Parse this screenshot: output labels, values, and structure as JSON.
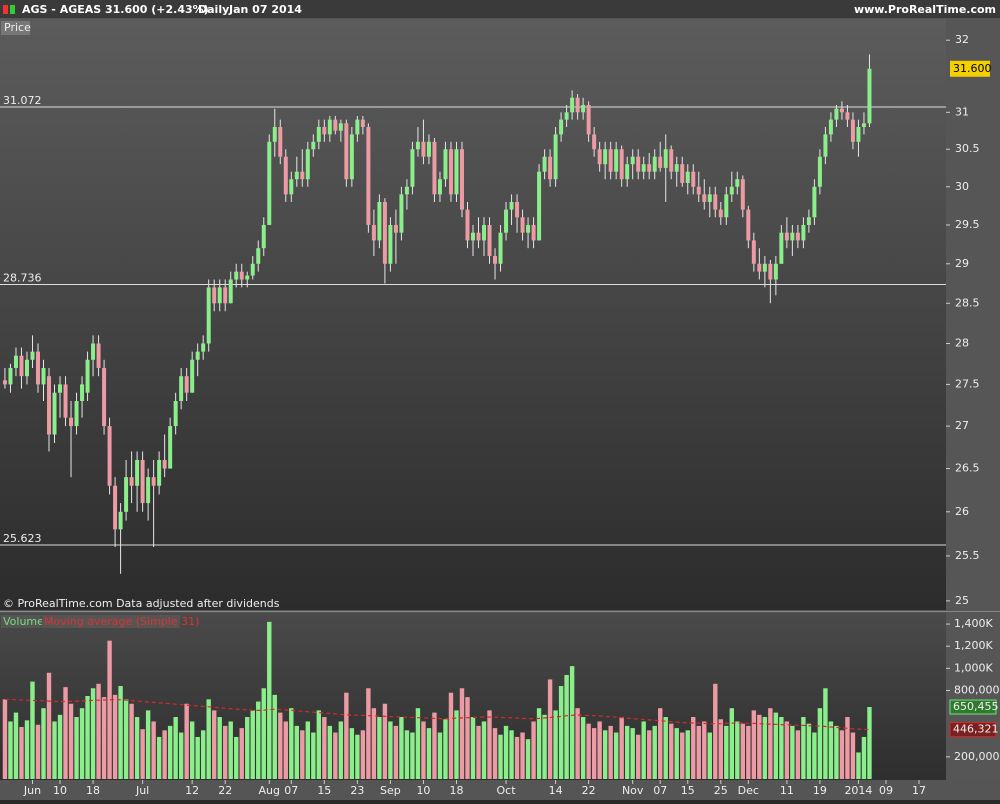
{
  "header": {
    "symbol": "AGS - AGEAS",
    "quote": "31.600 (+2.43%)",
    "period": "Daily",
    "date": "Jan 07 2014",
    "site": "www.ProRealTime.com"
  },
  "chart_data": [
    {
      "type": "candlestick",
      "panel_label": "Price",
      "note": "© ProRealTime.com Data adjusted after dividends",
      "log_scale": true,
      "up_color": "#8aee8a",
      "down_color": "#ec9aa4",
      "xlim": [
        -0.9,
        170.9
      ],
      "ylim": [
        24.9,
        32.3
      ],
      "yticks": [
        25,
        25.5,
        26,
        26.5,
        27,
        27.5,
        28,
        28.5,
        29,
        29.5,
        30,
        30.5,
        31,
        32
      ],
      "levels": [
        31.072,
        28.736,
        25.623
      ],
      "last_price": {
        "value": 31.6,
        "label": "31.600"
      },
      "open": [
        27.55,
        27.5,
        27.7,
        27.85,
        27.6,
        27.8,
        27.9,
        27.5,
        27.6,
        26.9,
        27.4,
        27.5,
        27.1,
        27.0,
        27.3,
        27.4,
        27.8,
        28.0,
        27.7,
        27.0,
        26.3,
        25.8,
        26.0,
        26.4,
        26.3,
        26.6,
        26.1,
        26.4,
        26.3,
        26.6,
        26.5,
        27.0,
        27.3,
        27.6,
        27.4,
        27.8,
        27.9,
        28.0,
        28.7,
        28.5,
        28.7,
        28.5,
        28.8,
        28.9,
        28.8,
        28.85,
        29.0,
        29.2,
        29.5,
        30.6,
        30.8,
        30.4,
        29.9,
        30.1,
        30.2,
        30.1,
        30.5,
        30.6,
        30.8,
        30.7,
        30.9,
        30.75,
        30.85,
        30.1,
        30.7,
        30.9,
        30.8,
        29.5,
        29.3,
        29.8,
        29.0,
        29.5,
        29.4,
        29.9,
        30.0,
        30.5,
        30.6,
        30.4,
        30.6,
        29.9,
        30.1,
        30.5,
        29.9,
        30.5,
        29.7,
        29.3,
        29.4,
        29.3,
        29.5,
        29.1,
        29.0,
        29.4,
        29.7,
        29.8,
        29.6,
        29.4,
        29.5,
        29.3,
        30.2,
        30.4,
        30.1,
        30.7,
        30.9,
        31.0,
        31.2,
        31.0,
        31.1,
        30.7,
        30.5,
        30.3,
        30.5,
        30.2,
        30.5,
        30.1,
        30.3,
        30.4,
        30.2,
        30.3,
        30.2,
        30.4,
        30.25,
        30.5,
        30.2,
        30.3,
        30.05,
        30.2,
        30.0,
        29.9,
        29.8,
        29.9,
        29.7,
        29.6,
        29.9,
        30.0,
        30.1,
        29.7,
        29.3,
        29.0,
        28.9,
        29.0,
        28.8,
        29.0,
        29.4,
        29.3,
        29.4,
        29.3,
        29.5,
        29.6,
        30.0,
        30.4,
        30.7,
        30.9,
        31.05,
        31.0,
        30.9,
        30.6,
        30.8,
        30.85
      ],
      "high": [
        27.7,
        27.75,
        27.95,
        27.95,
        27.9,
        28.1,
        28.0,
        27.8,
        27.7,
        27.5,
        27.6,
        27.6,
        27.3,
        27.4,
        27.6,
        27.9,
        28.1,
        28.1,
        27.8,
        27.1,
        26.4,
        26.1,
        26.6,
        26.7,
        26.7,
        26.7,
        26.5,
        26.6,
        26.7,
        26.9,
        27.1,
        27.4,
        27.7,
        27.7,
        27.9,
        28.0,
        28.1,
        28.8,
        28.8,
        28.8,
        28.8,
        28.9,
        29.0,
        29.0,
        28.9,
        29.1,
        29.3,
        29.6,
        30.7,
        31.05,
        30.9,
        30.5,
        30.2,
        30.4,
        30.5,
        30.6,
        30.7,
        30.9,
        30.9,
        30.95,
        30.95,
        30.9,
        30.9,
        30.8,
        30.95,
        30.95,
        30.85,
        29.7,
        29.9,
        29.85,
        29.6,
        29.7,
        30.0,
        30.1,
        30.6,
        30.8,
        30.9,
        30.7,
        30.65,
        30.2,
        30.6,
        30.6,
        30.6,
        30.6,
        29.8,
        29.5,
        29.6,
        29.6,
        29.6,
        29.2,
        29.5,
        29.8,
        29.9,
        29.9,
        29.7,
        29.6,
        29.6,
        30.3,
        30.5,
        30.5,
        30.8,
        31.0,
        31.1,
        31.3,
        31.25,
        31.2,
        31.15,
        30.8,
        30.6,
        30.6,
        30.6,
        30.6,
        30.55,
        30.4,
        30.5,
        30.5,
        30.4,
        30.45,
        30.5,
        30.6,
        30.7,
        30.55,
        30.4,
        30.4,
        30.3,
        30.3,
        30.2,
        30.1,
        30.0,
        30.0,
        29.8,
        30.0,
        30.2,
        30.2,
        30.15,
        29.75,
        29.4,
        29.2,
        29.1,
        29.05,
        29.1,
        29.5,
        29.6,
        29.5,
        29.5,
        29.6,
        29.7,
        30.1,
        30.5,
        30.8,
        31.0,
        31.1,
        31.15,
        31.1,
        31.0,
        30.9,
        31.0,
        31.8
      ],
      "low": [
        27.45,
        27.4,
        27.6,
        27.45,
        27.5,
        27.7,
        27.4,
        27.3,
        26.7,
        26.8,
        27.1,
        27.0,
        26.4,
        26.9,
        27.1,
        27.3,
        27.6,
        27.6,
        26.9,
        26.2,
        25.6,
        25.3,
        25.9,
        26.1,
        26.0,
        26.0,
        25.9,
        25.6,
        26.2,
        26.4,
        26.5,
        26.9,
        27.2,
        27.3,
        27.4,
        27.6,
        27.8,
        27.9,
        28.4,
        28.4,
        28.4,
        28.5,
        28.7,
        28.7,
        28.7,
        28.8,
        28.9,
        29.1,
        29.5,
        30.4,
        30.3,
        29.8,
        29.8,
        30.0,
        30.0,
        30.0,
        30.4,
        30.5,
        30.6,
        30.6,
        30.7,
        30.6,
        30.0,
        30.0,
        30.6,
        30.7,
        29.4,
        29.1,
        29.2,
        28.75,
        28.9,
        29.0,
        29.3,
        29.7,
        29.9,
        30.4,
        30.3,
        30.3,
        29.8,
        29.8,
        30.0,
        29.8,
        29.8,
        29.6,
        29.2,
        29.1,
        29.2,
        29.1,
        29.0,
        28.8,
        28.9,
        29.3,
        29.5,
        29.4,
        29.3,
        29.2,
        29.2,
        29.3,
        30.1,
        30.0,
        30.0,
        30.6,
        30.8,
        30.9,
        30.9,
        30.9,
        30.6,
        30.4,
        30.2,
        30.1,
        30.1,
        30.1,
        30.0,
        30.0,
        30.1,
        30.1,
        30.1,
        30.1,
        30.1,
        30.2,
        29.8,
        30.1,
        30.0,
        30.0,
        29.9,
        29.9,
        29.8,
        29.7,
        29.6,
        29.6,
        29.5,
        29.5,
        29.8,
        29.9,
        29.6,
        29.2,
        28.9,
        28.8,
        28.7,
        28.5,
        28.6,
        29.0,
        29.2,
        29.1,
        29.2,
        29.2,
        29.4,
        29.5,
        29.9,
        30.3,
        30.6,
        30.8,
        30.9,
        30.8,
        30.5,
        30.4,
        30.7,
        30.8
      ],
      "close": [
        27.5,
        27.7,
        27.85,
        27.6,
        27.8,
        27.9,
        27.5,
        27.7,
        26.9,
        27.4,
        27.5,
        27.1,
        27.0,
        27.3,
        27.5,
        27.8,
        28.0,
        27.7,
        27.0,
        26.3,
        25.8,
        26.0,
        26.4,
        26.3,
        26.6,
        26.1,
        26.4,
        26.3,
        26.6,
        26.5,
        27.0,
        27.3,
        27.6,
        27.4,
        27.8,
        27.9,
        28.0,
        28.7,
        28.5,
        28.7,
        28.5,
        28.8,
        28.9,
        28.8,
        28.85,
        29.0,
        29.2,
        29.5,
        30.6,
        30.8,
        30.4,
        29.9,
        30.1,
        30.2,
        30.1,
        30.5,
        30.6,
        30.8,
        30.7,
        30.9,
        30.75,
        30.85,
        30.1,
        30.7,
        30.9,
        30.8,
        29.5,
        29.3,
        29.8,
        29.0,
        29.5,
        29.4,
        29.9,
        30.0,
        30.5,
        30.6,
        30.4,
        30.6,
        29.9,
        30.1,
        30.5,
        29.9,
        30.5,
        29.7,
        29.3,
        29.4,
        29.3,
        29.5,
        29.1,
        29.0,
        29.4,
        29.7,
        29.8,
        29.6,
        29.4,
        29.5,
        29.3,
        30.2,
        30.4,
        30.1,
        30.7,
        30.9,
        31.0,
        31.2,
        31.0,
        31.1,
        30.7,
        30.5,
        30.3,
        30.5,
        30.2,
        30.5,
        30.1,
        30.3,
        30.4,
        30.2,
        30.3,
        30.2,
        30.4,
        30.25,
        30.5,
        30.2,
        30.3,
        30.05,
        30.2,
        30.0,
        29.9,
        29.8,
        29.9,
        29.7,
        29.6,
        29.9,
        30.0,
        30.1,
        29.7,
        29.3,
        29.0,
        28.9,
        29.0,
        28.8,
        29.0,
        29.4,
        29.3,
        29.4,
        29.3,
        29.5,
        29.6,
        30.0,
        30.4,
        30.7,
        30.9,
        31.05,
        31.0,
        30.9,
        30.6,
        30.8,
        30.85,
        31.6
      ]
    },
    {
      "type": "volume",
      "xlim": [
        -0.9,
        170.9
      ],
      "ylim": [
        0,
        1500000
      ],
      "yticks": [
        {
          "value": 200000,
          "label": "200,000"
        },
        {
          "value": 800000,
          "label": "800,000"
        },
        {
          "value": 1000000,
          "label": "1,000K"
        },
        {
          "value": 1200000,
          "label": "1,200K"
        },
        {
          "value": 1400000,
          "label": "1,400K"
        }
      ],
      "xticks": [
        {
          "value": 5,
          "label": "Jun"
        },
        {
          "value": 10,
          "label": "10"
        },
        {
          "value": 16,
          "label": "18"
        },
        {
          "value": 25,
          "label": "Jul"
        },
        {
          "value": 34,
          "label": "12"
        },
        {
          "value": 40,
          "label": "22"
        },
        {
          "value": 48,
          "label": "Aug"
        },
        {
          "value": 52,
          "label": "07"
        },
        {
          "value": 58,
          "label": "15"
        },
        {
          "value": 64,
          "label": "23"
        },
        {
          "value": 70,
          "label": "Sep"
        },
        {
          "value": 76,
          "label": "10"
        },
        {
          "value": 82,
          "label": "18"
        },
        {
          "value": 91,
          "label": "Oct"
        },
        {
          "value": 100,
          "label": "14"
        },
        {
          "value": 106,
          "label": "22"
        },
        {
          "value": 114,
          "label": "Nov"
        },
        {
          "value": 119,
          "label": "07"
        },
        {
          "value": 124,
          "label": "15"
        },
        {
          "value": 130,
          "label": "25"
        },
        {
          "value": 135,
          "label": "Dec"
        },
        {
          "value": 142,
          "label": "11"
        },
        {
          "value": 148,
          "label": "19"
        },
        {
          "value": 155,
          "label": "2014"
        },
        {
          "value": 160,
          "label": "09"
        },
        {
          "value": 166,
          "label": "17"
        }
      ],
      "series": [
        {
          "name": "Volume",
          "color": "#7cdc7c",
          "value_label": "650,455",
          "values": [
            720000,
            520000,
            600000,
            470000,
            530000,
            880000,
            490000,
            640000,
            960000,
            520000,
            580000,
            830000,
            680000,
            560000,
            640000,
            750000,
            820000,
            860000,
            740000,
            1250000,
            760000,
            840000,
            720000,
            680000,
            560000,
            450000,
            620000,
            520000,
            380000,
            440000,
            480000,
            560000,
            420000,
            680000,
            520000,
            380000,
            440000,
            720000,
            620000,
            560000,
            480000,
            520000,
            380000,
            460000,
            560000,
            620000,
            700000,
            820000,
            1420000,
            760000,
            600000,
            520000,
            640000,
            480000,
            440000,
            520000,
            420000,
            620000,
            560000,
            480000,
            420000,
            520000,
            780000,
            460000,
            400000,
            440000,
            820000,
            640000,
            560000,
            680000,
            520000,
            480000,
            560000,
            440000,
            420000,
            640000,
            520000,
            460000,
            600000,
            420000,
            540000,
            780000,
            620000,
            820000,
            740000,
            560000,
            480000,
            520000,
            620000,
            460000,
            400000,
            480000,
            440000,
            380000,
            420000,
            360000,
            520000,
            640000,
            580000,
            900000,
            620000,
            840000,
            940000,
            1020000,
            640000,
            560000,
            500000,
            460000,
            520000,
            440000,
            480000,
            420000,
            560000,
            480000,
            460000,
            400000,
            520000,
            440000,
            480000,
            640000,
            560000,
            500000,
            460000,
            420000,
            440000,
            560000,
            480000,
            520000,
            420000,
            860000,
            540000,
            480000,
            640000,
            520000,
            500000,
            480000,
            620000,
            580000,
            560000,
            640000,
            600000,
            560000,
            520000,
            480000,
            440000,
            560000,
            500000,
            420000,
            640000,
            820000,
            520000,
            480000,
            440000,
            560000,
            420000,
            240000,
            380000,
            650455
          ]
        },
        {
          "name": "Moving average (Simple 31)",
          "color": "#d42a2a",
          "value_label": "446,321",
          "values": [
            720000,
            718000,
            716000,
            714000,
            712000,
            710000,
            708000,
            706000,
            704000,
            702000,
            700000,
            700000,
            702000,
            704000,
            706000,
            708000,
            710000,
            712000,
            714000,
            716000,
            718000,
            716000,
            712000,
            708000,
            704000,
            700000,
            696000,
            692000,
            688000,
            684000,
            680000,
            676000,
            672000,
            668000,
            664000,
            660000,
            656000,
            652000,
            648000,
            644000,
            640000,
            636000,
            632000,
            628000,
            624000,
            620000,
            620000,
            622000,
            628000,
            630000,
            628000,
            624000,
            620000,
            616000,
            612000,
            608000,
            604000,
            600000,
            596000,
            592000,
            588000,
            584000,
            580000,
            578000,
            576000,
            574000,
            572000,
            570000,
            568000,
            566000,
            564000,
            562000,
            560000,
            558000,
            556000,
            554000,
            552000,
            550000,
            548000,
            546000,
            546000,
            548000,
            550000,
            552000,
            554000,
            556000,
            558000,
            560000,
            560000,
            558000,
            556000,
            554000,
            552000,
            550000,
            548000,
            546000,
            546000,
            548000,
            552000,
            556000,
            560000,
            566000,
            572000,
            576000,
            578000,
            576000,
            574000,
            572000,
            570000,
            566000,
            562000,
            558000,
            554000,
            550000,
            546000,
            542000,
            538000,
            534000,
            530000,
            526000,
            522000,
            518000,
            514000,
            510000,
            508000,
            506000,
            504000,
            502000,
            500000,
            500000,
            500000,
            502000,
            504000,
            506000,
            506000,
            504000,
            502000,
            500000,
            498000,
            496000,
            494000,
            492000,
            490000,
            488000,
            486000,
            484000,
            482000,
            480000,
            478000,
            474000,
            470000,
            466000,
            462000,
            458000,
            454000,
            451000,
            448000,
            446321
          ]
        }
      ]
    }
  ]
}
